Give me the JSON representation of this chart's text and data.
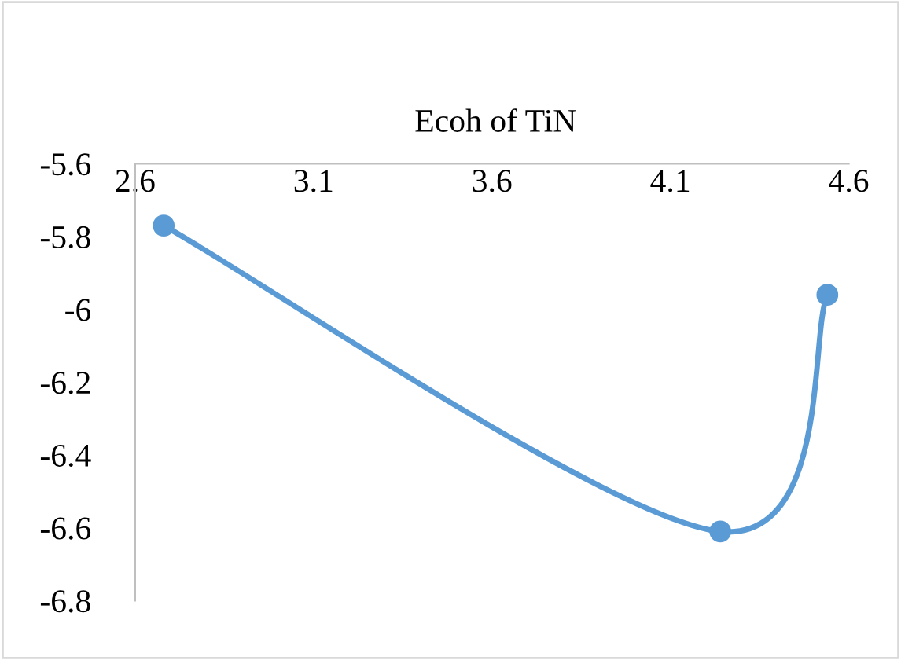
{
  "chart_data": {
    "type": "line",
    "title": "Ecoh of TiN",
    "x": [
      2.68,
      4.24,
      4.54
    ],
    "series": [
      {
        "color": "#5b9bd5",
        "values": [
          -5.77,
          -6.61,
          -5.96
        ]
      }
    ],
    "xlim": [
      2.6,
      4.6
    ],
    "xticks": [
      2.6,
      3.1,
      3.6,
      4.1,
      4.6
    ],
    "ylim": [
      -6.8,
      -5.6
    ],
    "yticks": [
      -5.6,
      -5.8,
      -6,
      -6.2,
      -6.4,
      -6.6,
      -6.8
    ],
    "marker": "circle",
    "line_style": "solid",
    "grid": false
  }
}
